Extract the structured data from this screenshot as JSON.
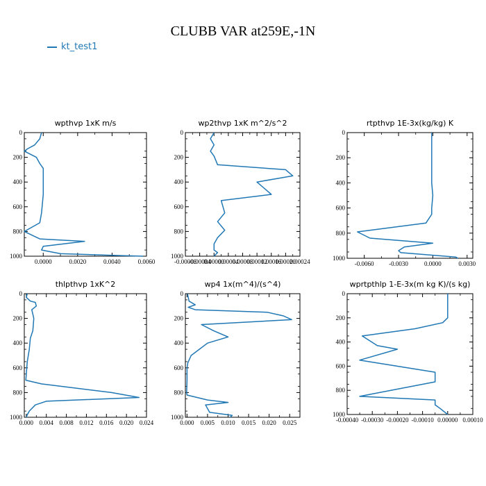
{
  "figure": {
    "title": "CLUBB VAR at259E,-1N",
    "legend_label": "kt_test1",
    "colors": {
      "series": "#1f77b4",
      "axis": "#000000"
    }
  },
  "chart_data": [
    {
      "type": "line",
      "title": "wpthvp   1xK m/s",
      "xlim": [
        -0.0011,
        0.006
      ],
      "ylim": [
        1000,
        0
      ],
      "x_ticks": [
        0.0,
        0.002,
        0.004,
        0.006
      ],
      "x_tick_labels": [
        "0.0000",
        "0.0020",
        "0.0040",
        "0.0060"
      ],
      "y_ticks": [
        0,
        200,
        400,
        600,
        800,
        1000
      ],
      "series": [
        {
          "x": [
            -0.0001,
            -0.0002,
            -0.0005,
            -0.0009,
            -0.0011,
            -0.0004,
            -0.0002,
            0.0,
            0.0,
            0.0,
            -0.0001,
            -0.0002,
            -0.0011,
            -0.0002,
            0.0024,
            0.0,
            -0.0001,
            0.001,
            0.0045,
            0.0058
          ],
          "y": [
            0,
            50,
            100,
            130,
            150,
            200,
            250,
            290,
            350,
            500,
            650,
            730,
            800,
            860,
            880,
            920,
            950,
            980,
            995,
            1000
          ]
        }
      ]
    },
    {
      "type": "line",
      "title": "wp2thvp   1xK m^2/s^2",
      "xlim": [
        -8e-05,
        0.00024
      ],
      "ylim": [
        1000,
        0
      ],
      "x_ticks": [
        -8e-05,
        -4e-05,
        0.0,
        4e-05,
        8e-05,
        0.00012,
        0.00016,
        0.0002,
        0.00024
      ],
      "x_tick_labels": [
        "-0.00008",
        "-0.00004",
        "0.00000",
        "0.00004",
        "0.00008",
        "0.00012",
        "0.00016",
        "0.00020",
        "0.00024"
      ],
      "y_ticks": [
        0,
        200,
        400,
        600,
        800,
        1000
      ],
      "series": [
        {
          "x": [
            0.0,
            -1e-05,
            0.0,
            -1e-05,
            0.0,
            1e-05,
            0.0002,
            0.00022,
            0.00012,
            0.00016,
            2e-05,
            3e-05,
            1e-05,
            3e-05,
            1e-05,
            0.0,
            0.0,
            1e-05,
            0.0
          ],
          "y": [
            0,
            50,
            100,
            150,
            190,
            260,
            300,
            350,
            400,
            500,
            550,
            650,
            720,
            790,
            850,
            900,
            950,
            970,
            1000
          ]
        }
      ]
    },
    {
      "type": "line",
      "title": "rtpthvp   1E-3x(kg/kg) K",
      "xlim": [
        -0.0075,
        0.0035
      ],
      "ylim": [
        1000,
        0
      ],
      "x_ticks": [
        -0.006,
        -0.003,
        0.0,
        0.003
      ],
      "x_tick_labels": [
        "-0.0060",
        "-0.0030",
        "0.0000",
        "0.0030"
      ],
      "y_ticks": [
        0,
        200,
        400,
        600,
        800,
        1000
      ],
      "series": [
        {
          "x": [
            -0.0001,
            -0.0001,
            -0.0001,
            -0.0001,
            -0.0001,
            0.0,
            -0.0001,
            -0.0001,
            -0.0006,
            -0.0066,
            -0.0055,
            0.0,
            -0.0025,
            -0.003,
            -0.0028,
            0.002,
            0.0022
          ],
          "y": [
            0,
            100,
            200,
            300,
            400,
            500,
            600,
            650,
            720,
            790,
            840,
            880,
            910,
            940,
            955,
            990,
            1000
          ]
        }
      ]
    },
    {
      "type": "line",
      "title": "thlpthvp   1xK^2",
      "xlim": [
        -0.0004,
        0.024
      ],
      "ylim": [
        1000,
        0
      ],
      "x_ticks": [
        0.0,
        0.004,
        0.008,
        0.012,
        0.016,
        0.02,
        0.024
      ],
      "x_tick_labels": [
        "0.000",
        "0.004",
        "0.008",
        "0.012",
        "0.016",
        "0.020",
        "0.024"
      ],
      "y_ticks": [
        0,
        200,
        400,
        600,
        800,
        1000
      ],
      "series": [
        {
          "x": [
            0.0002,
            0.0,
            0.0008,
            0.0018,
            0.002,
            0.0011,
            0.0015,
            0.0013,
            0.0008,
            0.0006,
            0.0002,
            0.0,
            -0.0001,
            0.003,
            0.017,
            0.0225,
            0.004,
            0.0018,
            0.0006,
            0.0002,
            0.0
          ],
          "y": [
            0,
            30,
            60,
            70,
            100,
            130,
            200,
            300,
            360,
            450,
            550,
            650,
            700,
            730,
            800,
            840,
            870,
            900,
            950,
            980,
            1000
          ]
        }
      ]
    },
    {
      "type": "line",
      "title": "wp4   1x(m^4)/(s^4)",
      "xlim": [
        -0.0004,
        0.0275
      ],
      "ylim": [
        1000,
        0
      ],
      "x_ticks": [
        0.0,
        0.005,
        0.01,
        0.015,
        0.02,
        0.025
      ],
      "x_tick_labels": [
        "0.000",
        "0.005",
        "0.010",
        "0.015",
        "0.020",
        "0.025"
      ],
      "y_ticks": [
        0,
        200,
        400,
        600,
        800,
        1000
      ],
      "series": [
        {
          "x": [
            0.0001,
            0.0005,
            0.002,
            0.0003,
            0.002,
            0.0195,
            0.0235,
            0.0255,
            0.0035,
            0.0065,
            0.01,
            0.005,
            0.003,
            0.001,
            0.0002,
            0.0,
            0.0,
            -0.0001,
            0.0,
            0.005,
            0.01,
            0.0045,
            0.0055,
            0.011,
            0.0105
          ],
          "y": [
            0,
            60,
            90,
            110,
            130,
            150,
            180,
            210,
            250,
            300,
            350,
            400,
            450,
            500,
            560,
            600,
            700,
            800,
            820,
            860,
            880,
            900,
            960,
            985,
            1000
          ]
        }
      ]
    },
    {
      "type": "line",
      "title": "wprtpthlp   1-E-3x(m kg K)/(s kg)",
      "xlim": [
        -0.0004,
        0.0001
      ],
      "ylim": [
        1000,
        0
      ],
      "x_ticks": [
        -0.0004,
        -0.0003,
        -0.0002,
        -0.0001,
        0.0,
        0.0001
      ],
      "x_tick_labels": [
        "-0.00040",
        "-0.00030",
        "-0.00020",
        "-0.00010",
        "0.00000",
        "0.00010"
      ],
      "y_ticks": [
        0,
        200,
        400,
        600,
        800,
        1000
      ],
      "series": [
        {
          "x": [
            0.0,
            0.0,
            0.0,
            -2e-05,
            -0.00013,
            -0.00034,
            -0.00028,
            -0.0002,
            -0.00035,
            -5e-05,
            -5e-05,
            -0.00035,
            -5e-05,
            -5e-05,
            -3e-05,
            0.0
          ],
          "y": [
            0,
            100,
            200,
            240,
            290,
            350,
            430,
            460,
            550,
            650,
            730,
            850,
            880,
            920,
            950,
            1000
          ]
        }
      ]
    }
  ]
}
